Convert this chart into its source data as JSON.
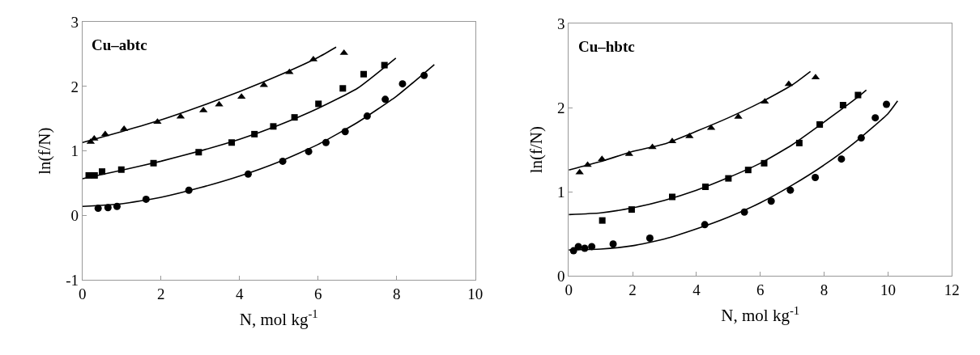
{
  "chart_data": [
    {
      "type": "scatter",
      "title": "Cu–abtc",
      "xlabel": "N, mol kg$^{-1}$",
      "ylabel": "ln(f/N)",
      "xlim": [
        0,
        10
      ],
      "xticks": [
        0,
        2,
        4,
        6,
        8,
        10
      ],
      "ylim": [
        -1,
        3
      ],
      "yticks": [
        -1,
        0,
        1,
        2,
        3
      ],
      "grid": false,
      "series": [
        {
          "type": "scatter",
          "marker": "triangle",
          "color": "#000000",
          "x": [
            0.21,
            0.3,
            0.58,
            1.06,
            1.91,
            2.5,
            3.08,
            3.48,
            4.05,
            4.62,
            5.27,
            5.88,
            6.66
          ],
          "values": [
            1.14,
            1.19,
            1.26,
            1.34,
            1.45,
            1.53,
            1.63,
            1.72,
            1.84,
            2.02,
            2.22,
            2.42,
            2.52
          ]
        },
        {
          "type": "scatter",
          "marker": "square",
          "color": "#000000",
          "x": [
            0.16,
            0.31,
            0.5,
            0.99,
            1.81,
            2.96,
            3.8,
            4.38,
            4.86,
            5.4,
            6.01,
            6.63,
            7.16,
            7.69
          ],
          "values": [
            0.62,
            0.62,
            0.68,
            0.71,
            0.81,
            0.98,
            1.13,
            1.26,
            1.38,
            1.52,
            1.73,
            1.97,
            2.19,
            2.33
          ]
        },
        {
          "type": "scatter",
          "marker": "circle",
          "color": "#000000",
          "x": [
            0.4,
            0.65,
            0.88,
            1.62,
            2.71,
            4.22,
            5.1,
            5.76,
            6.2,
            6.69,
            7.25,
            7.71,
            8.15,
            8.7
          ],
          "values": [
            0.11,
            0.12,
            0.14,
            0.25,
            0.39,
            0.64,
            0.84,
            0.99,
            1.13,
            1.3,
            1.54,
            1.8,
            2.04,
            2.17
          ]
        },
        {
          "type": "line",
          "marker": "none",
          "line_style": "solid",
          "color": "#000000",
          "x": [
            0,
            1,
            2,
            3,
            4,
            5,
            6,
            6.46
          ],
          "values": [
            1.13,
            1.3,
            1.48,
            1.69,
            1.92,
            2.17,
            2.45,
            2.61
          ]
        },
        {
          "type": "line",
          "marker": "none",
          "line_style": "solid",
          "color": "#000000",
          "x": [
            0,
            1,
            2,
            3,
            4,
            5,
            6,
            7,
            7.98
          ],
          "values": [
            0.57,
            0.7,
            0.84,
            1.0,
            1.18,
            1.4,
            1.66,
            1.97,
            2.44
          ]
        },
        {
          "type": "line",
          "marker": "none",
          "line_style": "solid",
          "color": "#000000",
          "x": [
            0,
            1,
            2,
            3,
            4,
            5,
            6,
            7,
            8,
            8.96
          ],
          "values": [
            0.14,
            0.18,
            0.28,
            0.43,
            0.61,
            0.83,
            1.1,
            1.44,
            1.85,
            2.34
          ]
        }
      ]
    },
    {
      "type": "scatter",
      "title": "Cu–hbtc",
      "xlabel": "N, mol kg$^{-1}$",
      "ylabel": "ln(f/N)",
      "xlim": [
        0,
        12
      ],
      "xticks": [
        0,
        2,
        4,
        6,
        8,
        10,
        12
      ],
      "ylim": [
        0,
        3
      ],
      "yticks": [
        0,
        1,
        2,
        3
      ],
      "grid": false,
      "series": [
        {
          "type": "scatter",
          "marker": "triangle",
          "color": "#000000",
          "x": [
            0.34,
            0.59,
            1.04,
            1.89,
            2.62,
            3.24,
            3.78,
            4.46,
            5.31,
            6.14,
            6.89,
            7.73
          ],
          "values": [
            1.23,
            1.32,
            1.39,
            1.45,
            1.53,
            1.6,
            1.66,
            1.76,
            1.89,
            2.07,
            2.28,
            2.36
          ]
        },
        {
          "type": "scatter",
          "marker": "square",
          "color": "#000000",
          "x": [
            1.05,
            1.97,
            3.24,
            4.28,
            5.0,
            5.62,
            6.12,
            7.22,
            7.86,
            8.59,
            9.06
          ],
          "values": [
            0.66,
            0.79,
            0.94,
            1.06,
            1.16,
            1.26,
            1.34,
            1.58,
            1.8,
            2.03,
            2.15
          ]
        },
        {
          "type": "scatter",
          "marker": "circle",
          "color": "#000000",
          "x": [
            0.15,
            0.3,
            0.5,
            0.72,
            1.39,
            2.54,
            4.26,
            5.5,
            6.34,
            6.94,
            7.72,
            8.54,
            9.16,
            9.6,
            9.95
          ],
          "values": [
            0.3,
            0.35,
            0.33,
            0.35,
            0.38,
            0.45,
            0.61,
            0.76,
            0.89,
            1.02,
            1.17,
            1.39,
            1.64,
            1.88,
            2.04
          ]
        },
        {
          "type": "line",
          "marker": "none",
          "line_style": "solid",
          "color": "#000000",
          "x": [
            0,
            1,
            2,
            3,
            4,
            5,
            6,
            7,
            7.57
          ],
          "values": [
            1.26,
            1.36,
            1.48,
            1.57,
            1.72,
            1.88,
            2.06,
            2.27,
            2.43
          ]
        },
        {
          "type": "line",
          "marker": "none",
          "line_style": "solid",
          "color": "#000000",
          "x": [
            0,
            1,
            2,
            3,
            4,
            5,
            6,
            7,
            8,
            9,
            9.32
          ],
          "values": [
            0.73,
            0.75,
            0.81,
            0.9,
            1.02,
            1.17,
            1.34,
            1.56,
            1.83,
            2.11,
            2.21
          ]
        },
        {
          "type": "line",
          "marker": "none",
          "line_style": "solid",
          "color": "#000000",
          "x": [
            0,
            1,
            2,
            3,
            4,
            5,
            6,
            7,
            8,
            9,
            10,
            10.3
          ],
          "values": [
            0.31,
            0.32,
            0.36,
            0.44,
            0.56,
            0.7,
            0.87,
            1.08,
            1.32,
            1.6,
            1.93,
            2.08
          ]
        }
      ]
    }
  ]
}
